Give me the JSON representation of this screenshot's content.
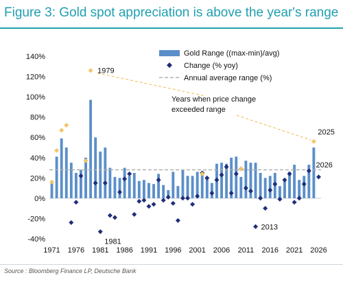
{
  "page": {
    "title": "Figure 3: Gold spot appreciation is above the year's range",
    "source": "Source : Bloomberg Finance LP, Deutsche Bank"
  },
  "colors": {
    "bar": "#5b8fc9",
    "diamond": "#1f2e7a",
    "highlight": "#f2c469",
    "avgline": "#b0b0b0",
    "title": "#1f9fb0"
  },
  "chart_data": {
    "type": "bar",
    "years": [
      1971,
      1972,
      1973,
      1974,
      1975,
      1976,
      1977,
      1978,
      1979,
      1980,
      1981,
      1982,
      1983,
      1984,
      1985,
      1986,
      1987,
      1988,
      1989,
      1990,
      1991,
      1992,
      1993,
      1994,
      1995,
      1996,
      1997,
      1998,
      1999,
      2000,
      2001,
      2002,
      2003,
      2004,
      2005,
      2006,
      2007,
      2008,
      2009,
      2010,
      2011,
      2012,
      2013,
      2014,
      2015,
      2016,
      2017,
      2018,
      2019,
      2020,
      2021,
      2022,
      2023,
      2024,
      2025,
      2026
    ],
    "x_tick_labels": [
      "1971",
      "1976",
      "1981",
      "1986",
      "1991",
      "1996",
      "2001",
      "2006",
      "2011",
      "2016",
      "2021",
      "2026"
    ],
    "y_ticks": [
      -40,
      -20,
      0,
      20,
      40,
      60,
      80,
      100,
      120,
      140
    ],
    "ylim": [
      -40,
      140
    ],
    "y_format": "%",
    "series": [
      {
        "name": "Gold Range ((max-min)/avg)",
        "kind": "bar",
        "values": [
          15,
          41,
          59,
          50,
          35,
          25,
          28,
          40,
          97,
          60,
          46,
          50,
          30,
          21,
          20,
          30,
          22,
          25,
          17,
          18,
          15,
          14,
          24,
          13,
          8,
          26,
          12,
          28,
          22,
          22,
          26,
          24,
          20,
          15,
          34,
          35,
          34,
          40,
          41,
          21,
          37,
          35,
          35,
          25,
          20,
          22,
          25,
          12,
          17,
          26,
          33,
          18,
          22,
          33,
          50,
          null
        ]
      },
      {
        "name": "Change (% yoy)",
        "kind": "diamond",
        "values": [
          null,
          null,
          null,
          null,
          -24,
          -4,
          22,
          null,
          null,
          15,
          -33,
          15,
          -17,
          -19,
          6,
          19,
          24,
          -16,
          -3,
          -2,
          -8,
          -6,
          18,
          -2,
          1,
          -5,
          -22,
          0,
          0,
          -6,
          2,
          25,
          20,
          5,
          18,
          23,
          31,
          5,
          24,
          29,
          10,
          7,
          -28,
          0,
          -10,
          8,
          14,
          -1,
          18,
          24,
          -4,
          0,
          14,
          27,
          null,
          21
        ]
      },
      {
        "name": "Years when price change exceeded range",
        "kind": "highlight",
        "points": [
          [
            1971,
            16
          ],
          [
            1972,
            47
          ],
          [
            1973,
            67
          ],
          [
            1974,
            72
          ],
          [
            1978,
            37
          ],
          [
            1979,
            126
          ],
          [
            2002,
            24
          ],
          [
            2010,
            29
          ],
          [
            2025,
            56
          ]
        ]
      }
    ],
    "avg_line": {
      "name": "Annual average range (%)",
      "value": 28
    },
    "legend": [
      "Gold Range ((max-min)/avg)",
      "Change (% yoy)",
      "Annual average range (%)"
    ],
    "annotations": [
      {
        "text": "1979",
        "year": 1979,
        "y": 126
      },
      {
        "text": "1981",
        "year": 1981,
        "y": -33
      },
      {
        "text": "2013",
        "year": 2013,
        "y": -28
      },
      {
        "text": "2025",
        "year": 2025,
        "y": 56
      },
      {
        "text": "2026",
        "year": 2026,
        "y": 21
      }
    ],
    "callout": {
      "line1": "Years when price change",
      "line2": "exceeded range"
    }
  }
}
